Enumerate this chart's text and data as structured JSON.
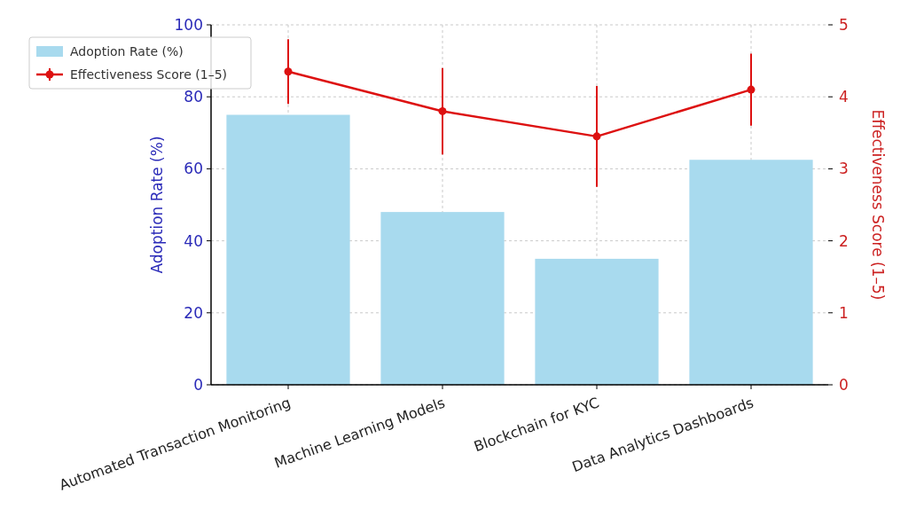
{
  "chart_data": {
    "type": "bar",
    "categories": [
      "Automated Transaction Monitoring",
      "Machine Learning Models",
      "Blockchain for KYC",
      "Data Analytics Dashboards"
    ],
    "series": [
      {
        "name": "Adoption Rate (%)",
        "color": "#a8daee",
        "values": [
          75,
          48,
          35,
          62.5
        ]
      },
      {
        "name": "Effectiveness Score (1–5)",
        "type": "line",
        "axis": "y2",
        "color": "#dd1111",
        "values": [
          4.35,
          3.8,
          3.45,
          4.1
        ],
        "errors": [
          0.45,
          0.6,
          0.7,
          0.5
        ],
        "marker": "circle"
      }
    ],
    "ylabel": "Adoption Rate (%)",
    "y2label": "Effectiveness Score (1–5)",
    "ylim": [
      0,
      100
    ],
    "yticks": [
      0,
      20,
      40,
      60,
      80,
      100
    ],
    "y2lim": [
      0,
      5
    ],
    "y2ticks": [
      0,
      1,
      2,
      3,
      4,
      5
    ],
    "grid": true,
    "legend": "top left"
  }
}
